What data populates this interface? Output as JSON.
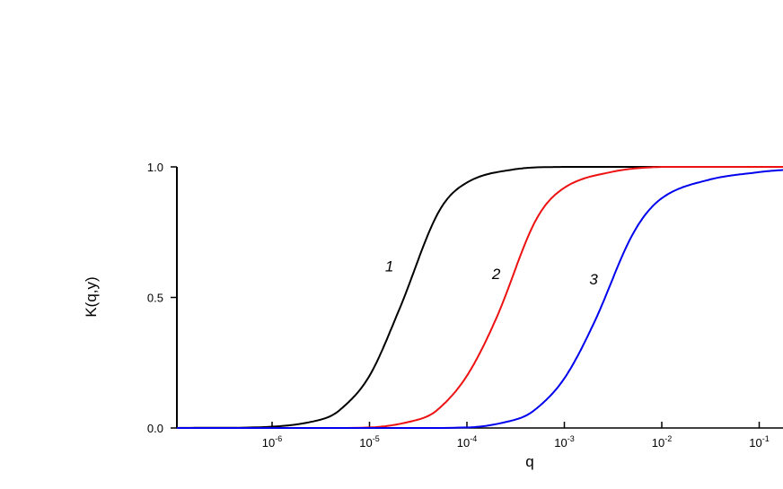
{
  "chart_data": {
    "type": "line",
    "title": "",
    "xlabel": "q",
    "ylabel": "K(q,y)",
    "x_scale": "log",
    "xlim": [
      1e-07,
      0.2
    ],
    "ylim": [
      0,
      1
    ],
    "grid": false,
    "legend": "none",
    "yticks": [
      {
        "value": 0.0,
        "label": "0.0"
      },
      {
        "value": 0.5,
        "label": "0.5"
      },
      {
        "value": 1.0,
        "label": "1.0"
      }
    ],
    "xticks": [
      {
        "value": 1e-06,
        "base": "10",
        "exp": "-6"
      },
      {
        "value": 1e-05,
        "base": "10",
        "exp": "-5"
      },
      {
        "value": 0.0001,
        "base": "10",
        "exp": "-4"
      },
      {
        "value": 0.001,
        "base": "10",
        "exp": "-3"
      },
      {
        "value": 0.01,
        "base": "10",
        "exp": "-2"
      },
      {
        "value": 0.1,
        "base": "10",
        "exp": "-1"
      }
    ],
    "series": [
      {
        "label": "1",
        "color": "#000000",
        "x": [
          1e-07,
          1e-06,
          3e-06,
          5e-06,
          1e-05,
          2e-05,
          5e-05,
          0.0001,
          0.0003,
          0.001,
          0.01,
          0.2
        ],
        "y": [
          0.0,
          0.005,
          0.03,
          0.07,
          0.2,
          0.45,
          0.82,
          0.94,
          0.99,
          1.0,
          1.0,
          1.0
        ],
        "label_at": {
          "x": 1.6e-05,
          "y": 0.6
        }
      },
      {
        "label": "2",
        "color": "#ee1111",
        "x": [
          1e-07,
          1e-05,
          3e-05,
          5e-05,
          0.0001,
          0.0002,
          0.0005,
          0.001,
          0.003,
          0.01,
          0.2
        ],
        "y": [
          0.0,
          0.002,
          0.03,
          0.07,
          0.2,
          0.42,
          0.79,
          0.92,
          0.98,
          1.0,
          1.0
        ],
        "label_at": {
          "x": 0.0002,
          "y": 0.57
        }
      },
      {
        "label": "3",
        "color": "#0000ee",
        "x": [
          1e-07,
          0.0001,
          0.0003,
          0.0005,
          0.001,
          0.002,
          0.005,
          0.01,
          0.03,
          0.1,
          0.2
        ],
        "y": [
          0.0,
          0.002,
          0.03,
          0.07,
          0.19,
          0.4,
          0.74,
          0.88,
          0.95,
          0.98,
          0.99
        ],
        "label_at": {
          "x": 0.002,
          "y": 0.55
        }
      }
    ]
  }
}
